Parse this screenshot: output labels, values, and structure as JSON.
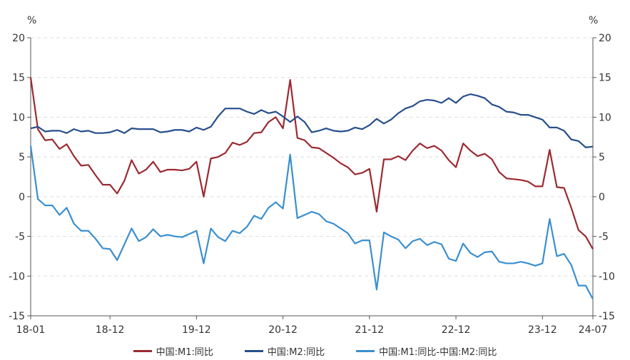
{
  "chart_data": {
    "type": "line",
    "unit_left": "%",
    "unit_right": "%",
    "ylim": [
      -15,
      20
    ],
    "yticks": [
      -15,
      -10,
      -5,
      0,
      5,
      10,
      15,
      20
    ],
    "x_start": "2018-01",
    "x_end": "2024-07",
    "xtick_labels": [
      "18-01",
      "18-12",
      "19-12",
      "20-12",
      "21-12",
      "22-12",
      "23-12",
      "24-07"
    ],
    "grid": true,
    "legend_position": "bottom",
    "series": [
      {
        "name": "中国:M1:同比",
        "color": "#9b2a31",
        "values": [
          15.0,
          8.5,
          7.1,
          7.2,
          6.0,
          6.6,
          5.1,
          3.9,
          4.0,
          2.7,
          1.5,
          1.5,
          0.4,
          2.0,
          4.6,
          2.9,
          3.4,
          4.4,
          3.1,
          3.4,
          3.4,
          3.3,
          3.5,
          4.4,
          0.0,
          4.8,
          5.0,
          5.5,
          6.8,
          6.5,
          6.9,
          8.0,
          8.1,
          9.4,
          10.0,
          8.6,
          14.7,
          7.4,
          7.1,
          6.2,
          6.1,
          5.5,
          4.9,
          4.2,
          3.7,
          2.8,
          3.0,
          3.5,
          -1.9,
          4.7,
          4.7,
          5.1,
          4.6,
          5.8,
          6.7,
          6.1,
          6.4,
          5.8,
          4.6,
          3.7,
          6.7,
          5.8,
          5.1,
          5.4,
          4.7,
          3.1,
          2.3,
          2.2,
          2.1,
          1.9,
          1.3,
          1.3,
          5.9,
          1.2,
          1.1,
          -1.4,
          -4.2,
          -5.0,
          -6.6
        ]
      },
      {
        "name": "中国:M2:同比",
        "color": "#274f8b",
        "values": [
          8.6,
          8.8,
          8.2,
          8.3,
          8.3,
          8.0,
          8.5,
          8.2,
          8.3,
          8.0,
          8.0,
          8.1,
          8.4,
          8.0,
          8.6,
          8.5,
          8.5,
          8.5,
          8.1,
          8.2,
          8.4,
          8.4,
          8.2,
          8.7,
          8.4,
          8.8,
          10.1,
          11.1,
          11.1,
          11.1,
          10.7,
          10.4,
          10.9,
          10.5,
          10.7,
          10.1,
          9.4,
          10.1,
          9.4,
          8.1,
          8.3,
          8.6,
          8.3,
          8.2,
          8.3,
          8.7,
          8.5,
          9.0,
          9.8,
          9.2,
          9.7,
          10.5,
          11.1,
          11.4,
          12.0,
          12.2,
          12.1,
          11.8,
          12.4,
          11.8,
          12.6,
          12.9,
          12.7,
          12.4,
          11.6,
          11.3,
          10.7,
          10.6,
          10.3,
          10.3,
          10.0,
          9.7,
          8.7,
          8.7,
          8.3,
          7.2,
          7.0,
          6.2,
          6.3
        ]
      },
      {
        "name": "中国:M1:同比-中国:M2:同比",
        "color": "#3a8fcf",
        "values": [
          6.4,
          -0.3,
          -1.1,
          -1.1,
          -2.3,
          -1.4,
          -3.4,
          -4.3,
          -4.3,
          -5.3,
          -6.5,
          -6.6,
          -8.0,
          -6.0,
          -4.0,
          -5.6,
          -5.1,
          -4.1,
          -5.0,
          -4.8,
          -5.0,
          -5.1,
          -4.7,
          -4.3,
          -8.4,
          -4.0,
          -5.1,
          -5.6,
          -4.3,
          -4.6,
          -3.8,
          -2.4,
          -2.8,
          -1.4,
          -0.7,
          -1.5,
          5.3,
          -2.7,
          -2.3,
          -1.9,
          -2.2,
          -3.1,
          -3.4,
          -4.0,
          -4.6,
          -5.9,
          -5.5,
          -5.5,
          -11.7,
          -4.5,
          -5.0,
          -5.4,
          -6.5,
          -5.6,
          -5.3,
          -6.1,
          -5.7,
          -6.0,
          -7.8,
          -8.1,
          -5.9,
          -7.1,
          -7.6,
          -7.0,
          -6.9,
          -8.2,
          -8.4,
          -8.4,
          -8.2,
          -8.4,
          -8.7,
          -8.4,
          -2.8,
          -7.5,
          -7.2,
          -8.6,
          -11.2,
          -11.2,
          -12.9
        ]
      }
    ]
  }
}
